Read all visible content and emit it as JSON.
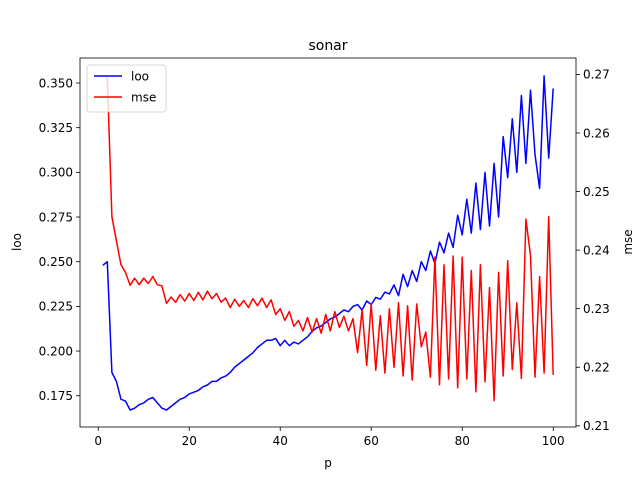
{
  "chart_data": {
    "type": "line",
    "title": "sonar",
    "xlabel": "p",
    "ylabel_left": "loo",
    "ylabel_right": "mse",
    "xlim": [
      -4,
      105
    ],
    "ylim_left": [
      0.1575,
      0.364
    ],
    "ylim_right": [
      0.2098,
      0.2728
    ],
    "xticks": [
      0,
      20,
      40,
      60,
      80,
      100
    ],
    "yticks_left": [
      0.175,
      0.2,
      0.225,
      0.25,
      0.275,
      0.3,
      0.325,
      0.35
    ],
    "yticks_right": [
      0.21,
      0.22,
      0.23,
      0.24,
      0.25,
      0.26,
      0.27
    ],
    "legend_position": "top-left",
    "grid": false,
    "series": [
      {
        "name": "loo",
        "axis": "left",
        "color": "#0000ff",
        "x": [
          1,
          2,
          3,
          4,
          5,
          6,
          7,
          8,
          9,
          10,
          11,
          12,
          13,
          14,
          15,
          16,
          17,
          18,
          19,
          20,
          21,
          22,
          23,
          24,
          25,
          26,
          27,
          28,
          29,
          30,
          31,
          32,
          33,
          34,
          35,
          36,
          37,
          38,
          39,
          40,
          41,
          42,
          43,
          44,
          45,
          46,
          47,
          48,
          49,
          50,
          51,
          52,
          53,
          54,
          55,
          56,
          57,
          58,
          59,
          60,
          61,
          62,
          63,
          64,
          65,
          66,
          67,
          68,
          69,
          70,
          71,
          72,
          73,
          74,
          75,
          76,
          77,
          78,
          79,
          80,
          81,
          82,
          83,
          84,
          85,
          86,
          87,
          88,
          89,
          90,
          91,
          92,
          93,
          94,
          95,
          96,
          97,
          98,
          99,
          100
        ],
        "values": [
          0.248,
          0.25,
          0.188,
          0.183,
          0.173,
          0.172,
          0.167,
          0.168,
          0.17,
          0.171,
          0.173,
          0.174,
          0.171,
          0.168,
          0.167,
          0.169,
          0.171,
          0.173,
          0.174,
          0.176,
          0.177,
          0.178,
          0.18,
          0.181,
          0.183,
          0.183,
          0.185,
          0.186,
          0.188,
          0.191,
          0.193,
          0.195,
          0.197,
          0.199,
          0.202,
          0.204,
          0.206,
          0.206,
          0.207,
          0.203,
          0.206,
          0.203,
          0.205,
          0.204,
          0.206,
          0.208,
          0.211,
          0.213,
          0.214,
          0.216,
          0.218,
          0.219,
          0.221,
          0.223,
          0.222,
          0.225,
          0.226,
          0.223,
          0.228,
          0.226,
          0.23,
          0.229,
          0.233,
          0.232,
          0.237,
          0.231,
          0.243,
          0.236,
          0.245,
          0.239,
          0.25,
          0.245,
          0.256,
          0.249,
          0.261,
          0.255,
          0.266,
          0.258,
          0.276,
          0.265,
          0.285,
          0.266,
          0.294,
          0.268,
          0.3,
          0.27,
          0.305,
          0.275,
          0.32,
          0.297,
          0.33,
          0.3,
          0.343,
          0.305,
          0.346,
          0.31,
          0.291,
          0.354,
          0.308,
          0.347
        ]
      },
      {
        "name": "mse",
        "axis": "right",
        "color": "#ff0000",
        "x": [
          2,
          3,
          4,
          5,
          6,
          7,
          8,
          9,
          10,
          11,
          12,
          13,
          14,
          15,
          16,
          17,
          18,
          19,
          20,
          21,
          22,
          23,
          24,
          25,
          26,
          27,
          28,
          29,
          30,
          31,
          32,
          33,
          34,
          35,
          36,
          37,
          38,
          39,
          40,
          41,
          42,
          43,
          44,
          45,
          46,
          47,
          48,
          49,
          50,
          51,
          52,
          53,
          54,
          55,
          56,
          57,
          58,
          59,
          60,
          61,
          62,
          63,
          64,
          65,
          66,
          67,
          68,
          69,
          70,
          71,
          72,
          73,
          74,
          75,
          76,
          77,
          78,
          79,
          80,
          81,
          82,
          83,
          84,
          85,
          86,
          87,
          88,
          89,
          90,
          91,
          92,
          93,
          94,
          95,
          96,
          97,
          98,
          99,
          100
        ],
        "values": [
          0.2695,
          0.2457,
          0.2416,
          0.2375,
          0.2362,
          0.234,
          0.2352,
          0.2341,
          0.2352,
          0.2343,
          0.2355,
          0.2341,
          0.2339,
          0.2309,
          0.232,
          0.2311,
          0.2324,
          0.2313,
          0.2326,
          0.2314,
          0.2328,
          0.2315,
          0.233,
          0.2317,
          0.2326,
          0.2311,
          0.2318,
          0.2302,
          0.2316,
          0.2304,
          0.2314,
          0.2302,
          0.2317,
          0.2305,
          0.2318,
          0.2302,
          0.2315,
          0.229,
          0.23,
          0.228,
          0.2295,
          0.227,
          0.228,
          0.2262,
          0.2285,
          0.226,
          0.2283,
          0.2258,
          0.229,
          0.2262,
          0.2295,
          0.2268,
          0.2287,
          0.2262,
          0.2283,
          0.2225,
          0.2298,
          0.2203,
          0.2308,
          0.2195,
          0.2288,
          0.219,
          0.23,
          0.22,
          0.231,
          0.2185,
          0.2305,
          0.2178,
          0.2308,
          0.2235,
          0.226,
          0.2183,
          0.2388,
          0.217,
          0.2375,
          0.218,
          0.239,
          0.2165,
          0.2388,
          0.218,
          0.2365,
          0.2158,
          0.2375,
          0.2175,
          0.2336,
          0.2143,
          0.2362,
          0.2185,
          0.2382,
          0.2196,
          0.231,
          0.2181,
          0.2453,
          0.2391,
          0.2183,
          0.2355,
          0.219,
          0.2457,
          0.2187
        ]
      }
    ]
  }
}
